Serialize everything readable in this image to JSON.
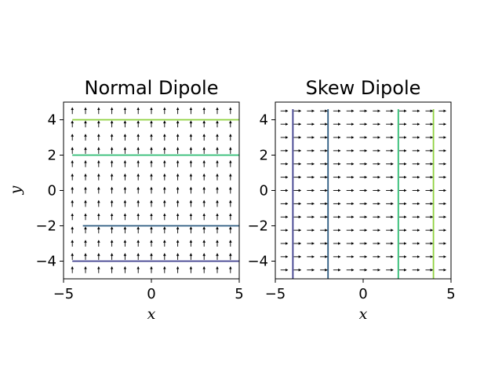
{
  "chart_data": [
    {
      "type": "vector-field",
      "title": "Normal Dipole",
      "xlabel": "x",
      "ylabel": "y",
      "xlim": [
        -5,
        5
      ],
      "ylim": [
        -5,
        5
      ],
      "xticks": [
        -5,
        0,
        5
      ],
      "yticks": [
        -4,
        -2,
        0,
        2,
        4
      ],
      "grid": false,
      "field_direction": "+y",
      "arrow_grid": {
        "min": -4.5,
        "max": 4.5,
        "count": 13
      },
      "field_lines": [
        {
          "orientation": "horizontal",
          "value": -4,
          "color": "#3b3b8c"
        },
        {
          "orientation": "horizontal",
          "value": -2,
          "color": "#2a5a80"
        },
        {
          "orientation": "horizontal",
          "value": 2,
          "color": "#2dbb72"
        },
        {
          "orientation": "horizontal",
          "value": 4,
          "color": "#8fd13f"
        }
      ]
    },
    {
      "type": "vector-field",
      "title": "Skew Dipole",
      "xlabel": "x",
      "ylabel": "",
      "xlim": [
        -5,
        5
      ],
      "ylim": [
        -5,
        5
      ],
      "xticks": [
        -5,
        0,
        5
      ],
      "yticks": [
        -4,
        -2,
        0,
        2,
        4
      ],
      "grid": false,
      "field_direction": "+x",
      "arrow_grid": {
        "min": -4.5,
        "max": 4.5,
        "count": 13
      },
      "field_lines": [
        {
          "orientation": "vertical",
          "value": -4,
          "color": "#3b3b8c"
        },
        {
          "orientation": "vertical",
          "value": -2,
          "color": "#2a5a80"
        },
        {
          "orientation": "vertical",
          "value": 2,
          "color": "#2dbb72"
        },
        {
          "orientation": "vertical",
          "value": 4,
          "color": "#8fd13f"
        }
      ]
    }
  ]
}
